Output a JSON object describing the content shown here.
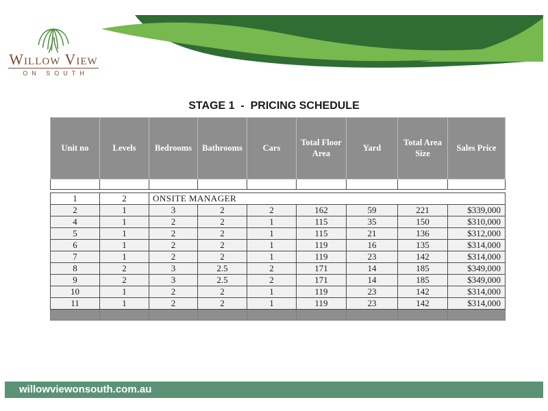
{
  "page": {
    "title": "STAGE 1  -  PRICING SCHEDULE"
  },
  "logo": {
    "name": "Willow View",
    "subtitle": "ON SOUTH"
  },
  "table": {
    "columns": [
      "Unit no",
      "Levels",
      "Bedrooms",
      "Bathrooms",
      "Cars",
      "Total Floor Area",
      "Yard",
      "Total Area Size",
      "Sales Price"
    ],
    "manager_row": {
      "unit_no": "1",
      "levels": "2",
      "label": "ONSITE MANAGER"
    },
    "rows": [
      [
        "2",
        "1",
        "3",
        "2",
        "2",
        "162",
        "59",
        "221",
        "$339,000"
      ],
      [
        "4",
        "1",
        "2",
        "2",
        "1",
        "115",
        "35",
        "150",
        "$310,000"
      ],
      [
        "5",
        "1",
        "2",
        "2",
        "1",
        "115",
        "21",
        "136",
        "$312,000"
      ],
      [
        "6",
        "1",
        "2",
        "2",
        "1",
        "119",
        "16",
        "135",
        "$314,000"
      ],
      [
        "7",
        "1",
        "2",
        "2",
        "1",
        "119",
        "23",
        "142",
        "$314,000"
      ],
      [
        "8",
        "2",
        "3",
        "2.5",
        "2",
        "171",
        "14",
        "185",
        "$349,000"
      ],
      [
        "9",
        "2",
        "3",
        "2.5",
        "2",
        "171",
        "14",
        "185",
        "$349,000"
      ],
      [
        "10",
        "1",
        "2",
        "2",
        "1",
        "119",
        "23",
        "142",
        "$314,000"
      ],
      [
        "11",
        "1",
        "2",
        "2",
        "1",
        "119",
        "23",
        "142",
        "$314,000"
      ]
    ]
  },
  "footer": {
    "url": "willowviewonsouth.com.au"
  },
  "colors": {
    "dark_green": "#2f6d33",
    "light_green": "#77b84f",
    "header_gray": "#8e8e8e",
    "row_gray": "#f1f1f1",
    "footer_green": "#5b9276",
    "logo_brown": "#7b4a38",
    "tree_green": "#4e9140"
  }
}
